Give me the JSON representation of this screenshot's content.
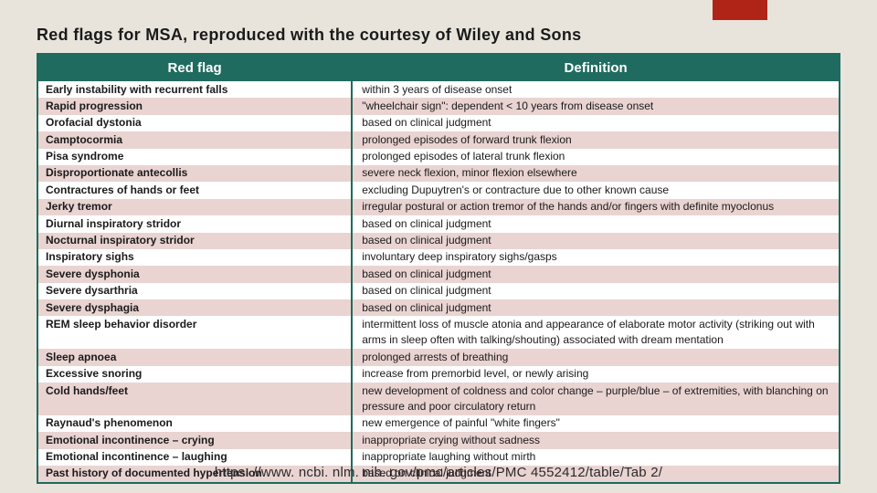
{
  "accent_color": "#b02418",
  "background_color": "#e8e4dc",
  "header_bg": "#1f6b5f",
  "row_alt_bg": "#e9d4d2",
  "title_prefix": "Red flags for ",
  "title_em": "MSA",
  "title_suffix": ", reproduced with the courtesy of Wiley and Sons",
  "columns": [
    "Red flag",
    "Definition"
  ],
  "rows": [
    [
      "Early instability with recurrent falls",
      "within 3 years of disease onset"
    ],
    [
      "Rapid progression",
      "\"wheelchair sign\": dependent < 10 years from disease onset"
    ],
    [
      "Orofacial dystonia",
      "based on clinical judgment"
    ],
    [
      "Camptocormia",
      "prolonged episodes of forward trunk flexion"
    ],
    [
      "Pisa syndrome",
      "prolonged episodes of lateral trunk flexion"
    ],
    [
      "Disproportionate antecollis",
      "severe neck flexion, minor flexion elsewhere"
    ],
    [
      "Contractures of hands or feet",
      "excluding Dupuytren's or contracture due to other known cause"
    ],
    [
      "Jerky tremor",
      "irregular postural or action tremor of the hands and/or fingers with definite myoclonus"
    ],
    [
      "Diurnal inspiratory stridor",
      "based on clinical judgment"
    ],
    [
      "Nocturnal inspiratory stridor",
      "based on clinical judgment"
    ],
    [
      "Inspiratory sighs",
      "involuntary deep inspiratory sighs/gasps"
    ],
    [
      "Severe dysphonia",
      "based on clinical judgment"
    ],
    [
      "Severe dysarthria",
      "based on clinical judgment"
    ],
    [
      "Severe dysphagia",
      "based on clinical judgment"
    ],
    [
      "REM sleep behavior disorder",
      "intermittent loss of muscle atonia and appearance of elaborate motor activity (striking out with arms in sleep often with talking/shouting) associated with dream mentation"
    ],
    [
      "Sleep apnoea",
      "prolonged arrests of breathing"
    ],
    [
      "Excessive snoring",
      "increase from premorbid level, or newly arising"
    ],
    [
      "Cold hands/feet",
      "new development of coldness and color change – purple/blue – of extremities, with blanching on pressure and poor circulatory return"
    ],
    [
      "Raynaud's phenomenon",
      "new emergence of painful \"white fingers\""
    ],
    [
      "Emotional incontinence – crying",
      "inappropriate crying without sadness"
    ],
    [
      "Emotional incontinence – laughing",
      "inappropriate laughing without mirth"
    ],
    [
      "Past history of documented hypertension",
      "based on clinical judgment"
    ]
  ],
  "footer": "https: //www. ncbi. nlm. nih. gov/pmc/articles/PMC 4552412/table/Tab 2/"
}
